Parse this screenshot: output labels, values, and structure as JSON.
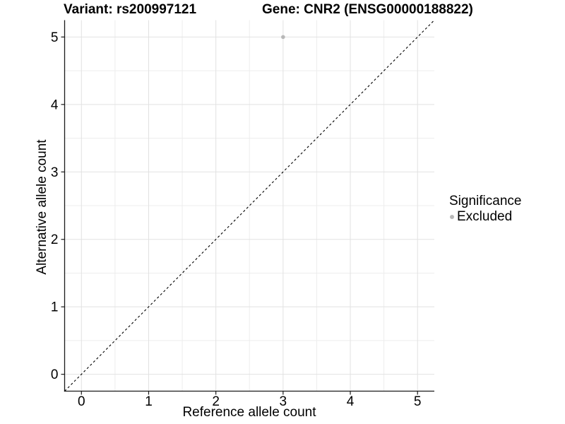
{
  "header": {
    "title_left": "Variant: rs200997121",
    "title_right": "Gene: CNR2 (ENSG00000188822)"
  },
  "chart_data": {
    "type": "scatter",
    "title": "Variant: rs200997121 — Gene: CNR2 (ENSG00000188822)",
    "xlabel": "Reference allele count",
    "ylabel": "Alternative allele count",
    "xlim": [
      -0.25,
      5.25
    ],
    "ylim": [
      -0.25,
      5.25
    ],
    "xticks": [
      0,
      1,
      2,
      3,
      4,
      5
    ],
    "yticks": [
      0,
      1,
      2,
      3,
      4,
      5
    ],
    "grid": {
      "major_every": 1,
      "minor_every": 0.5,
      "visible": true
    },
    "points": [
      {
        "x": 3,
        "y": 5,
        "series": "Excluded"
      }
    ],
    "reference_line": {
      "kind": "abline",
      "slope": 1,
      "intercept": 0,
      "style": "dashed",
      "color": "#000000"
    },
    "legend": {
      "title": "Significance",
      "position": "right",
      "items": [
        {
          "label": "Excluded",
          "color": "#b8b8b8",
          "marker": "circle"
        }
      ]
    },
    "colors": {
      "background": "#ffffff",
      "grid_major": "#e2e2e2",
      "grid_minor": "#ededed",
      "axis_line": "#1a1a1a",
      "tick_mark": "#1a1a1a",
      "tick_label": "#000000",
      "point": "#b8b8b8"
    }
  }
}
